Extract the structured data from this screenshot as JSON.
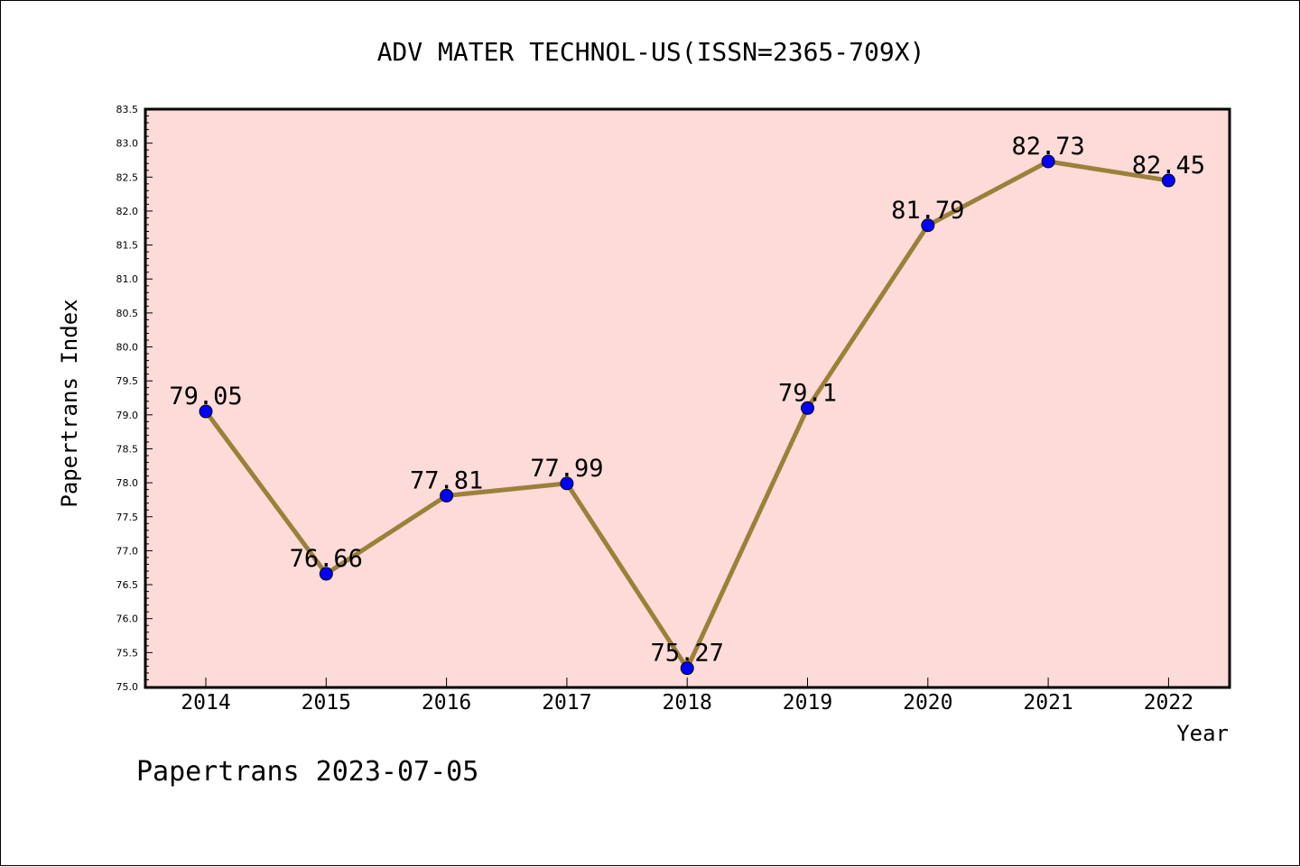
{
  "chart_data": {
    "type": "line",
    "title": "ADV MATER TECHNOL-US(ISSN=2365-709X)",
    "xlabel": "Year",
    "ylabel": "Papertrans Index",
    "categories": [
      "2014",
      "2015",
      "2016",
      "2017",
      "2018",
      "2019",
      "2020",
      "2021",
      "2022"
    ],
    "values": [
      79.05,
      76.66,
      77.81,
      77.99,
      75.27,
      79.1,
      81.79,
      82.73,
      82.45
    ],
    "data_labels": [
      "79.05",
      "76.66",
      "77.81",
      "77.99",
      "75.27",
      "79.1",
      "81.79",
      "82.73",
      "82.45"
    ],
    "ylim": [
      75.0,
      83.5
    ],
    "yticks": [
      "75.0",
      "75.5",
      "76.0",
      "76.5",
      "77.0",
      "77.5",
      "78.0",
      "78.5",
      "79.0",
      "79.5",
      "80.0",
      "80.5",
      "81.0",
      "81.5",
      "82.0",
      "82.5",
      "83.0",
      "83.5"
    ],
    "grid": false,
    "plot_background": "#fddbd8",
    "line_color": "#9b8039",
    "marker_color": "#0000ff"
  },
  "footer": {
    "text": "Papertrans 2023-07-05"
  }
}
